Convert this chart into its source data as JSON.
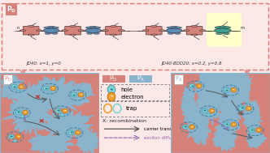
{
  "top_bg": "#fce8e6",
  "top_border_color": "#e07878",
  "pink_domain": "#d4827a",
  "blue_domain": "#8ab4cc",
  "legend_bg": "#fce8e6",
  "hole_fill": "#7fd4d4",
  "hole_edge": "#40a0b0",
  "electron_fill": "#f0a030",
  "electron_edge": "#c07010",
  "carrier_arrow": "#555555",
  "exciton_arrow": "#9060b0",
  "recomb_color": "#c03030",
  "label_left": "JD40: x=1, y=0",
  "label_right": "JD40-BDD20: x=0.2, y=0.8",
  "PD_label": "P_D",
  "PA_label": "P_A",
  "legend_hole": "hole",
  "legend_electron": "electron",
  "legend_trap": "trap",
  "legend_recomb": "X: recombination",
  "legend_carrier": "carrier transport",
  "legend_exciton": "exciton diffusion",
  "pink_mol": "#d4827a",
  "blue_mol": "#5b8db8",
  "teal_mol": "#40a090",
  "outline_color": "#222222"
}
